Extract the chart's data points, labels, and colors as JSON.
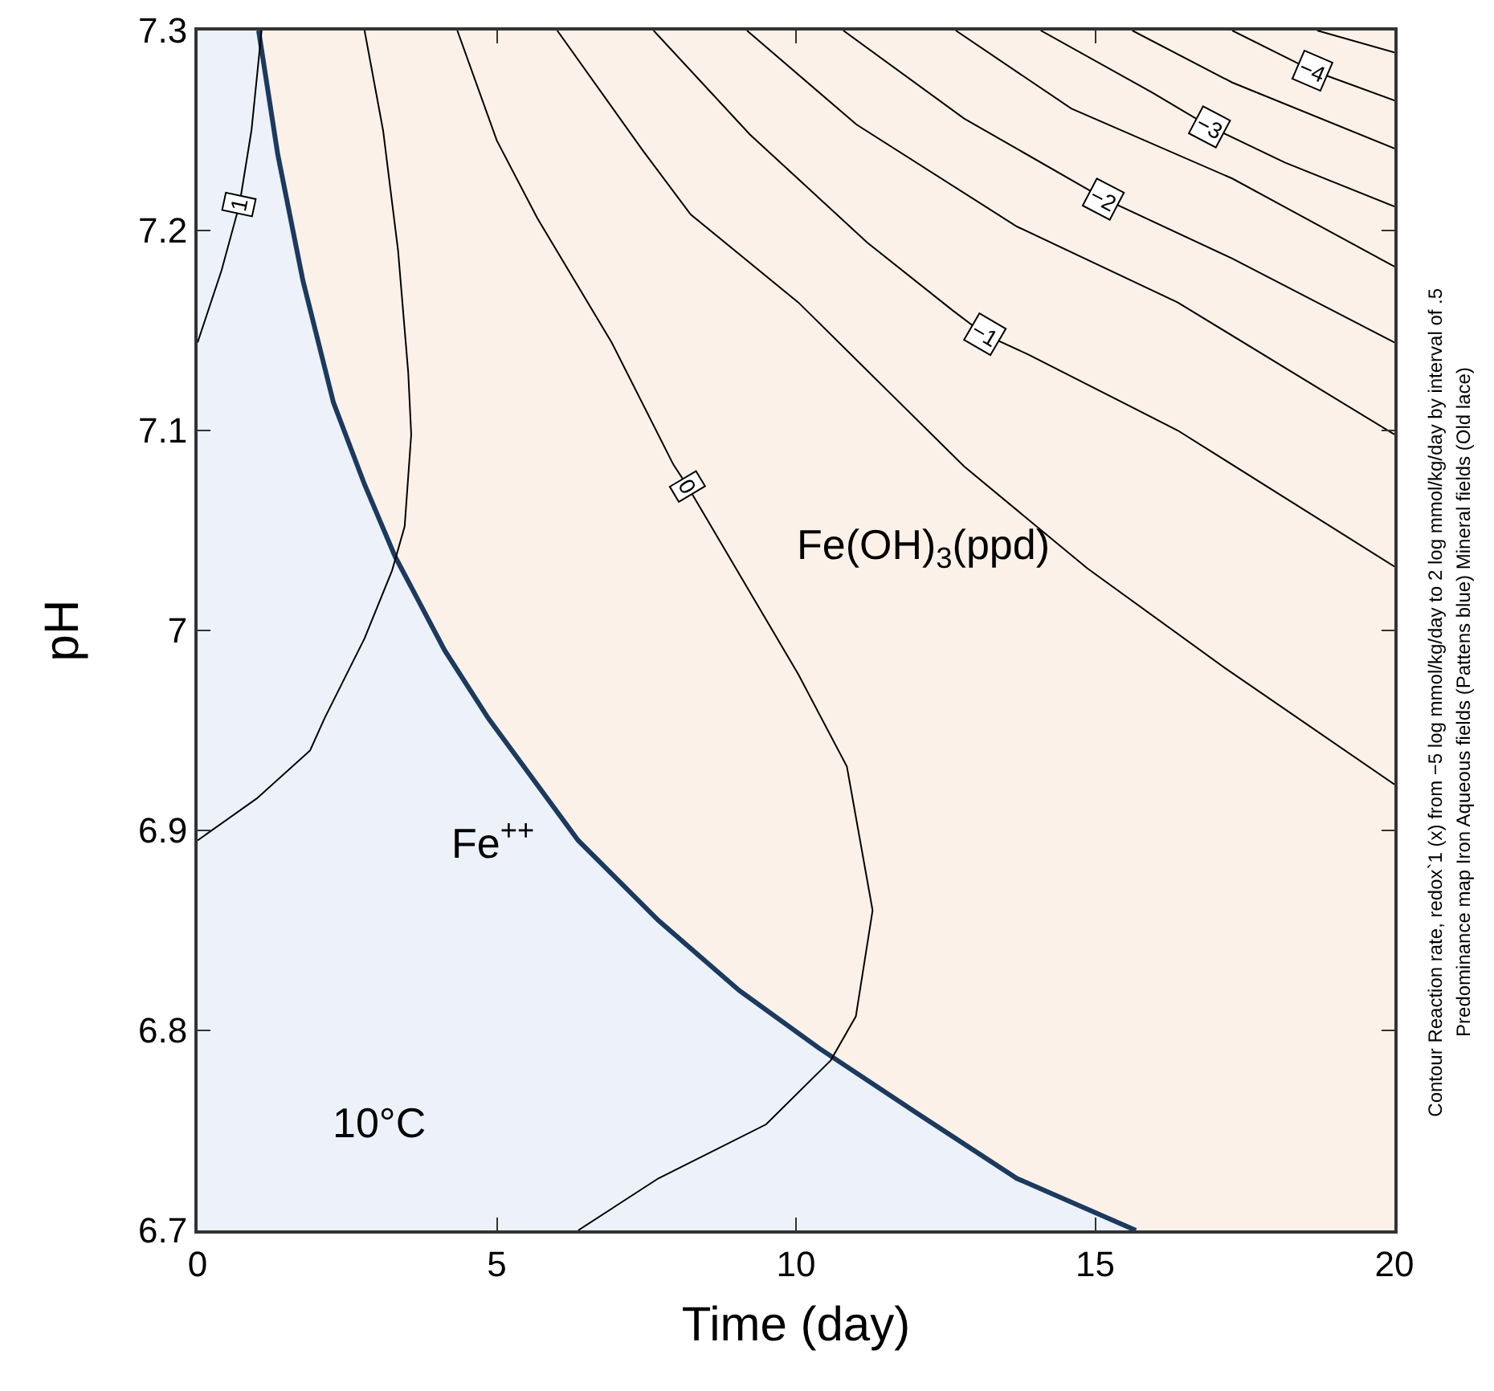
{
  "chart_data": {
    "type": "line",
    "xlabel": "Time (day)",
    "ylabel": "pH",
    "xlim": [
      0,
      20
    ],
    "xticks": [
      0,
      5,
      10,
      15,
      20
    ],
    "ylim": [
      6.7,
      7.3
    ],
    "yticks": [
      6.7,
      6.8,
      6.9,
      7,
      7.1,
      7.2,
      7.3
    ],
    "legend": false,
    "marker": "none",
    "line_style": "solid",
    "annotations": [
      "Fe$^{++}$",
      "Fe(OH)$_{3}$(ppd)",
      "10°C",
      "Contour Reaction rate, redox`1 (x) from −5 log mmol/kg/day to 2 log mmol/kg/day by interval of .5",
      "Predominance map Iron Aqueous fields (Pattens blue) Mineral fields (Old lace)"
    ],
    "series": [
      {
        "type": "area",
        "color": "#fcf1e8",
        "x": [
          0,
          20
        ],
        "values": [
          7.3,
          7.3
        ]
      },
      {
        "type": "area",
        "color": "#edf1f9",
        "x": [
          0,
          1.02
        ],
        "values": [
          7.3,
          7.3
        ]
      },
      {
        "type": "area",
        "color": "#1b3a5e",
        "x": [
          1.02,
          1.34,
          1.76,
          2.27,
          2.79,
          3.3,
          4.13,
          4.86,
          6.36,
          7.7,
          9.05,
          10.39,
          12.0,
          13.69,
          15.68
        ],
        "values": [
          7.3,
          7.238,
          7.175,
          7.114,
          7.073,
          7.037,
          6.99,
          6.956,
          6.895,
          6.855,
          6.82,
          6.791,
          6.759,
          6.726,
          6.7
        ]
      },
      {
        "name": "1",
        "color": "#000000",
        "x": [
          1.07,
          0.9,
          0.7,
          0.4,
          0
        ],
        "values": [
          7.3,
          7.25,
          7.213,
          7.18,
          7.144
        ]
      },
      {
        "color": "#000000",
        "x": [
          2.79,
          3.1,
          3.35,
          3.52,
          3.57,
          3.46,
          3.25,
          2.79,
          2.12,
          1.88,
          0.99,
          0
        ],
        "values": [
          7.3,
          7.25,
          7.19,
          7.129,
          7.098,
          7.052,
          7.03,
          6.996,
          6.956,
          6.94,
          6.916,
          6.895
        ]
      },
      {
        "name": "0",
        "color": "#000000",
        "x": [
          4.34,
          5.0,
          5.68,
          6.92,
          7.95,
          8.19,
          10.04,
          10.85,
          11.28,
          11.0,
          10.58,
          9.5,
          7.7,
          6.36
        ],
        "values": [
          7.3,
          7.245,
          7.206,
          7.144,
          7.083,
          7.072,
          6.978,
          6.932,
          6.86,
          6.807,
          6.785,
          6.753,
          6.726,
          6.7
        ]
      },
      {
        "color": "#000000",
        "x": [
          6.01,
          7.44,
          8.24,
          10.04,
          12.81,
          14.87,
          17.18,
          20
        ],
        "values": [
          7.3,
          7.24,
          7.208,
          7.164,
          7.082,
          7.031,
          6.981,
          6.923
        ]
      },
      {
        "name": "−1",
        "color": "#000000",
        "x": [
          7.62,
          9.23,
          11.19,
          12.62,
          13.15,
          13.88,
          16.38,
          20
        ],
        "values": [
          7.3,
          7.248,
          7.194,
          7.16,
          7.148,
          7.138,
          7.1,
          7.032
        ]
      },
      {
        "color": "#000000",
        "x": [
          9.18,
          11.01,
          13.69,
          16.38,
          20
        ],
        "values": [
          7.3,
          7.253,
          7.202,
          7.164,
          7.098
        ]
      },
      {
        "name": "−2",
        "color": "#000000",
        "x": [
          10.79,
          12.81,
          15.14,
          17.29,
          20
        ],
        "values": [
          7.3,
          7.256,
          7.216,
          7.186,
          7.144
        ]
      },
      {
        "color": "#000000",
        "x": [
          12.67,
          14.6,
          17.29,
          20
        ],
        "values": [
          7.3,
          7.261,
          7.226,
          7.182
        ]
      },
      {
        "name": "−3",
        "color": "#000000",
        "x": [
          14.09,
          15.95,
          16.91,
          18.17,
          20
        ],
        "values": [
          7.3,
          7.269,
          7.252,
          7.234,
          7.212
        ]
      },
      {
        "color": "#000000",
        "x": [
          15.62,
          17.29,
          20
        ],
        "values": [
          7.3,
          7.274,
          7.241
        ]
      },
      {
        "name": "−4",
        "color": "#000000",
        "x": [
          17.29,
          18.63,
          20
        ],
        "values": [
          7.3,
          7.28,
          7.265
        ]
      },
      {
        "color": "#000000",
        "x": [
          18.71,
          20
        ],
        "values": [
          7.3,
          7.289
        ]
      }
    ]
  }
}
